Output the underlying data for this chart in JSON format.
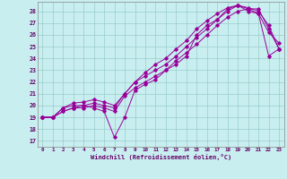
{
  "xlabel": "Windchill (Refroidissement éolien,°C)",
  "bg_color": "#c8eef0",
  "grid_color": "#99cccc",
  "line_color": "#990099",
  "xlim": [
    -0.5,
    23.5
  ],
  "ylim": [
    16.5,
    28.8
  ],
  "yticks": [
    17,
    18,
    19,
    20,
    21,
    22,
    23,
    24,
    25,
    26,
    27,
    28
  ],
  "xticks": [
    0,
    1,
    2,
    3,
    4,
    5,
    6,
    7,
    8,
    9,
    10,
    11,
    12,
    13,
    14,
    15,
    16,
    17,
    18,
    19,
    20,
    21,
    22,
    23
  ],
  "series": [
    [
      19.0,
      19.0,
      19.5,
      19.8,
      20.0,
      19.8,
      19.5,
      17.3,
      19.0,
      21.3,
      21.8,
      22.2,
      23.0,
      23.5,
      24.2,
      26.0,
      26.8,
      27.3,
      28.2,
      28.5,
      28.2,
      27.8,
      26.2,
      25.3
    ],
    [
      19.0,
      19.0,
      19.5,
      19.8,
      19.8,
      20.0,
      19.8,
      19.5,
      20.8,
      21.5,
      22.0,
      22.5,
      23.0,
      23.8,
      24.5,
      25.2,
      26.0,
      26.8,
      27.5,
      28.0,
      28.2,
      28.2,
      26.5,
      24.8
    ],
    [
      19.0,
      19.0,
      19.8,
      20.0,
      20.0,
      20.2,
      20.0,
      19.8,
      21.0,
      22.0,
      22.5,
      23.0,
      23.5,
      24.2,
      25.0,
      25.8,
      26.5,
      27.3,
      28.0,
      28.5,
      28.3,
      28.0,
      26.8,
      24.8
    ],
    [
      19.0,
      19.0,
      19.8,
      20.2,
      20.3,
      20.5,
      20.3,
      20.0,
      21.0,
      22.0,
      22.8,
      23.5,
      24.0,
      24.8,
      25.5,
      26.5,
      27.2,
      27.8,
      28.3,
      28.5,
      28.0,
      27.8,
      24.2,
      24.8
    ]
  ]
}
